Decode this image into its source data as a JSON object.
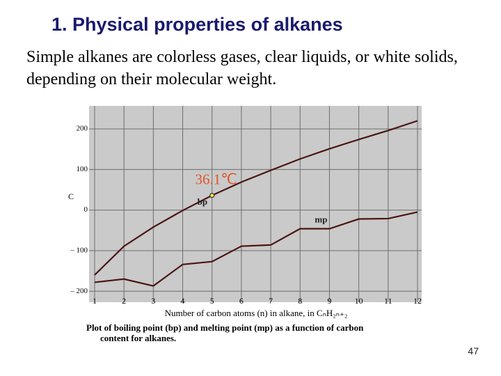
{
  "slide": {
    "title": "1. Physical properties of alkanes",
    "text": "Simple alkanes are colorless gases, clear liquids, or white solids, depending on their molecular weight.",
    "page_number": "47"
  },
  "chart_data": {
    "type": "line",
    "x": [
      1,
      2,
      3,
      4,
      5,
      6,
      7,
      8,
      9,
      10,
      11,
      12
    ],
    "series": [
      {
        "name": "bp",
        "color": "#4a1414",
        "values": [
          -160,
          -89,
          -42,
          -1,
          36.1,
          69,
          98,
          126,
          151,
          174,
          196,
          220
        ]
      },
      {
        "name": "mp",
        "color": "#4a1414",
        "values": [
          -178,
          -170,
          -187,
          -134,
          -127,
          -89,
          -86,
          -46,
          -46,
          -22,
          -21,
          -5
        ]
      }
    ],
    "xlim": [
      1,
      12
    ],
    "ylim": [
      -215,
      250
    ],
    "xticks": [
      1,
      2,
      3,
      4,
      5,
      6,
      7,
      8,
      9,
      10,
      11,
      12
    ],
    "yticks": [
      {
        "value": -200,
        "label": "– 200"
      },
      {
        "value": -100,
        "label": "– 100"
      },
      0,
      100,
      200
    ],
    "ylabel": "C",
    "xlabel": "Number of carbon atoms (n) in alkane, in CₙH₂ₙ₊₂",
    "caption": [
      "Plot of boiling point (bp) and melting point (mp) as a function of carbon",
      "content  for alkanes."
    ],
    "annotation": {
      "text": "36.1℃",
      "x": 5,
      "y": 36.1
    },
    "grid": true
  }
}
